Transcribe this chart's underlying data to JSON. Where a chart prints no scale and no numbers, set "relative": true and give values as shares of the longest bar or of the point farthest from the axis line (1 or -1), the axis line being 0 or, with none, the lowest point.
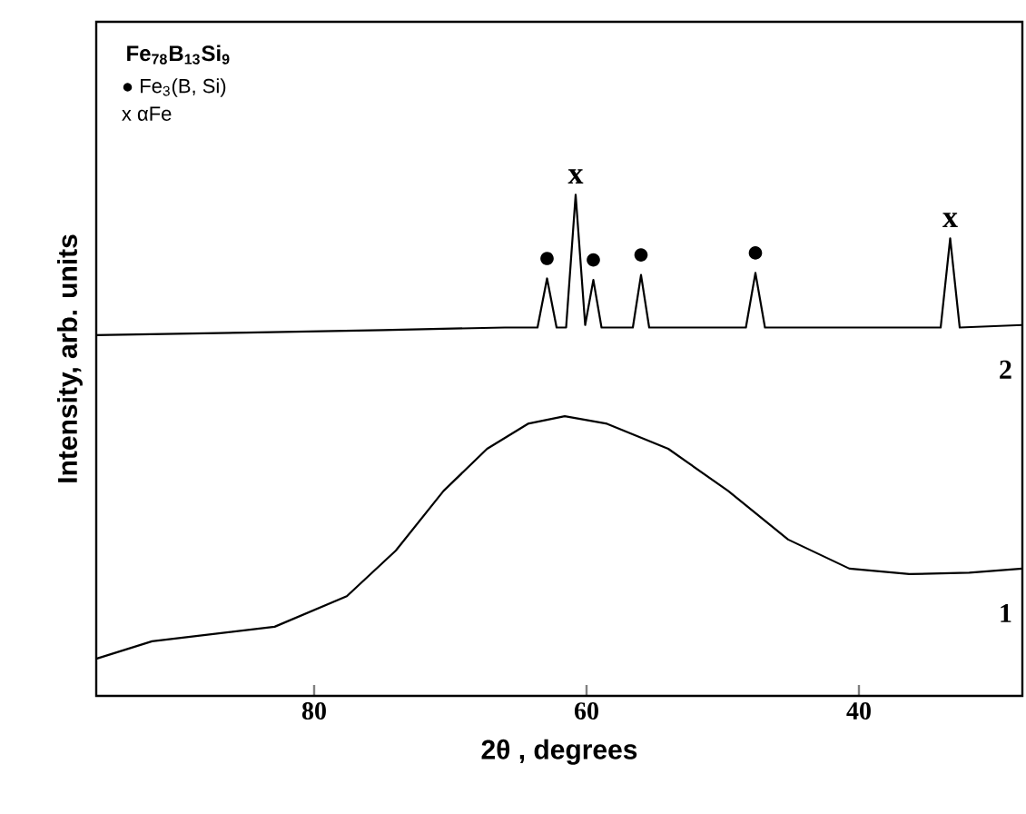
{
  "chart_data": {
    "type": "line",
    "title": "Fe$_{78}$B$_{13}$Si$_{9}$",
    "xlabel": "2θ , degrees",
    "ylabel": "Intensity, arb. units",
    "relative": true,
    "xlim": [
      96,
      28
    ],
    "xticks": [
      80,
      60,
      40
    ],
    "line_style": "solid",
    "grid": false,
    "annotations": [
      "● Fe$_{3}$(B, Si)",
      "x αFe",
      {
        "text": "●",
        "x": 62.9,
        "y": 0.833
      },
      {
        "text": "x",
        "x": 60.8,
        "y": 1.0
      },
      {
        "text": "●",
        "x": 59.5,
        "y": 0.83
      },
      {
        "text": "●",
        "x": 56.0,
        "y": 0.84
      },
      {
        "text": "●",
        "x": 47.6,
        "y": 0.844
      },
      {
        "text": "x",
        "x": 33.3,
        "y": 0.913
      }
    ],
    "series": [
      {
        "name": "1",
        "color": "#000000",
        "x": [
          96,
          91.9,
          82.9,
          77.6,
          74,
          70.5,
          67.3,
          64.3,
          61.6,
          58.5,
          54,
          49.6,
          45.2,
          40.7,
          36.3,
          31.9,
          28
        ],
        "values": [
          0.074,
          0.109,
          0.138,
          0.199,
          0.29,
          0.409,
          0.493,
          0.543,
          0.558,
          0.543,
          0.493,
          0.409,
          0.312,
          0.254,
          0.243,
          0.246,
          0.254
        ]
      },
      {
        "name": "2",
        "color": "#000000",
        "x": [
          96,
          85,
          75,
          66,
          63.6,
          62.9,
          62.2,
          61.5,
          60.8,
          60.1,
          59.5,
          58.9,
          56.6,
          56.0,
          55.4,
          48.3,
          47.6,
          46.9,
          34,
          33.3,
          32.6,
          28
        ],
        "values": [
          0.72,
          0.725,
          0.73,
          0.735,
          0.735,
          0.833,
          0.735,
          0.735,
          1.0,
          0.74,
          0.83,
          0.735,
          0.735,
          0.84,
          0.735,
          0.735,
          0.844,
          0.735,
          0.735,
          0.913,
          0.735,
          0.74
        ]
      }
    ]
  }
}
